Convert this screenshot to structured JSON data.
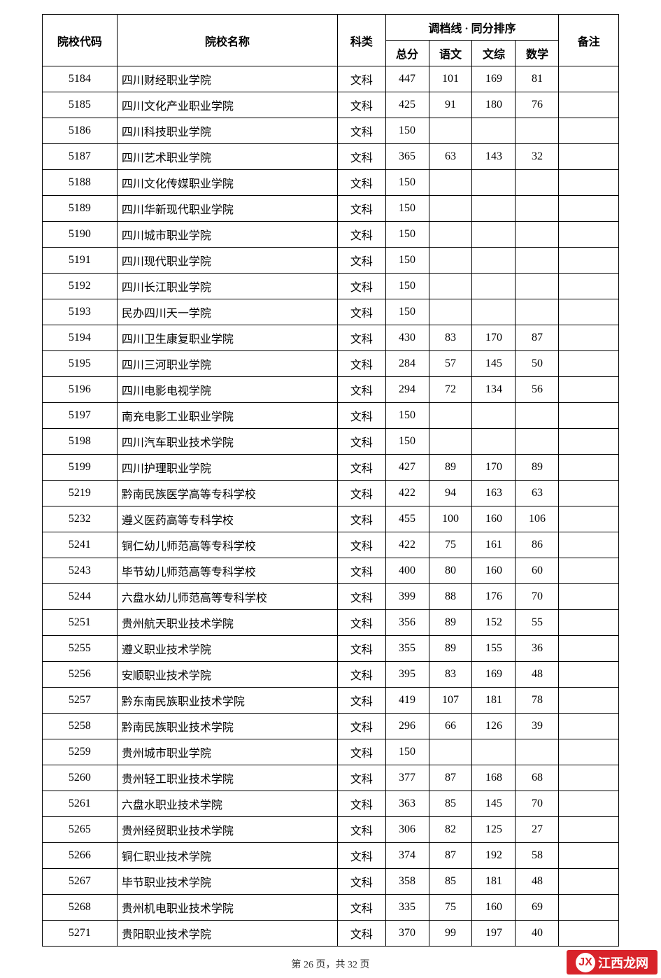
{
  "table": {
    "headers": {
      "code": "院校代码",
      "name": "院校名称",
      "type": "科类",
      "score_group": "调档线 · 同分排序",
      "total": "总分",
      "chinese": "语文",
      "comprehensive": "文综",
      "math": "数学",
      "remark": "备注"
    },
    "col_widths": {
      "code": 100,
      "name": 295,
      "type": 64,
      "score": 58,
      "sub": 58,
      "remark": 80
    },
    "rows": [
      {
        "code": "5184",
        "name": "四川财经职业学院",
        "type": "文科",
        "total": "447",
        "chinese": "101",
        "comp": "169",
        "math": "81",
        "remark": ""
      },
      {
        "code": "5185",
        "name": "四川文化产业职业学院",
        "type": "文科",
        "total": "425",
        "chinese": "91",
        "comp": "180",
        "math": "76",
        "remark": ""
      },
      {
        "code": "5186",
        "name": "四川科技职业学院",
        "type": "文科",
        "total": "150",
        "chinese": "",
        "comp": "",
        "math": "",
        "remark": ""
      },
      {
        "code": "5187",
        "name": "四川艺术职业学院",
        "type": "文科",
        "total": "365",
        "chinese": "63",
        "comp": "143",
        "math": "32",
        "remark": ""
      },
      {
        "code": "5188",
        "name": "四川文化传媒职业学院",
        "type": "文科",
        "total": "150",
        "chinese": "",
        "comp": "",
        "math": "",
        "remark": ""
      },
      {
        "code": "5189",
        "name": "四川华新现代职业学院",
        "type": "文科",
        "total": "150",
        "chinese": "",
        "comp": "",
        "math": "",
        "remark": ""
      },
      {
        "code": "5190",
        "name": "四川城市职业学院",
        "type": "文科",
        "total": "150",
        "chinese": "",
        "comp": "",
        "math": "",
        "remark": ""
      },
      {
        "code": "5191",
        "name": "四川现代职业学院",
        "type": "文科",
        "total": "150",
        "chinese": "",
        "comp": "",
        "math": "",
        "remark": ""
      },
      {
        "code": "5192",
        "name": "四川长江职业学院",
        "type": "文科",
        "total": "150",
        "chinese": "",
        "comp": "",
        "math": "",
        "remark": ""
      },
      {
        "code": "5193",
        "name": "民办四川天一学院",
        "type": "文科",
        "total": "150",
        "chinese": "",
        "comp": "",
        "math": "",
        "remark": ""
      },
      {
        "code": "5194",
        "name": "四川卫生康复职业学院",
        "type": "文科",
        "total": "430",
        "chinese": "83",
        "comp": "170",
        "math": "87",
        "remark": ""
      },
      {
        "code": "5195",
        "name": "四川三河职业学院",
        "type": "文科",
        "total": "284",
        "chinese": "57",
        "comp": "145",
        "math": "50",
        "remark": ""
      },
      {
        "code": "5196",
        "name": "四川电影电视学院",
        "type": "文科",
        "total": "294",
        "chinese": "72",
        "comp": "134",
        "math": "56",
        "remark": ""
      },
      {
        "code": "5197",
        "name": "南充电影工业职业学院",
        "type": "文科",
        "total": "150",
        "chinese": "",
        "comp": "",
        "math": "",
        "remark": ""
      },
      {
        "code": "5198",
        "name": "四川汽车职业技术学院",
        "type": "文科",
        "total": "150",
        "chinese": "",
        "comp": "",
        "math": "",
        "remark": ""
      },
      {
        "code": "5199",
        "name": "四川护理职业学院",
        "type": "文科",
        "total": "427",
        "chinese": "89",
        "comp": "170",
        "math": "89",
        "remark": ""
      },
      {
        "code": "5219",
        "name": "黔南民族医学高等专科学校",
        "type": "文科",
        "total": "422",
        "chinese": "94",
        "comp": "163",
        "math": "63",
        "remark": ""
      },
      {
        "code": "5232",
        "name": "遵义医药高等专科学校",
        "type": "文科",
        "total": "455",
        "chinese": "100",
        "comp": "160",
        "math": "106",
        "remark": ""
      },
      {
        "code": "5241",
        "name": "铜仁幼儿师范高等专科学校",
        "type": "文科",
        "total": "422",
        "chinese": "75",
        "comp": "161",
        "math": "86",
        "remark": ""
      },
      {
        "code": "5243",
        "name": "毕节幼儿师范高等专科学校",
        "type": "文科",
        "total": "400",
        "chinese": "80",
        "comp": "160",
        "math": "60",
        "remark": ""
      },
      {
        "code": "5244",
        "name": "六盘水幼儿师范高等专科学校",
        "type": "文科",
        "total": "399",
        "chinese": "88",
        "comp": "176",
        "math": "70",
        "remark": ""
      },
      {
        "code": "5251",
        "name": "贵州航天职业技术学院",
        "type": "文科",
        "total": "356",
        "chinese": "89",
        "comp": "152",
        "math": "55",
        "remark": ""
      },
      {
        "code": "5255",
        "name": "遵义职业技术学院",
        "type": "文科",
        "total": "355",
        "chinese": "89",
        "comp": "155",
        "math": "36",
        "remark": ""
      },
      {
        "code": "5256",
        "name": "安顺职业技术学院",
        "type": "文科",
        "total": "395",
        "chinese": "83",
        "comp": "169",
        "math": "48",
        "remark": ""
      },
      {
        "code": "5257",
        "name": "黔东南民族职业技术学院",
        "type": "文科",
        "total": "419",
        "chinese": "107",
        "comp": "181",
        "math": "78",
        "remark": ""
      },
      {
        "code": "5258",
        "name": "黔南民族职业技术学院",
        "type": "文科",
        "total": "296",
        "chinese": "66",
        "comp": "126",
        "math": "39",
        "remark": ""
      },
      {
        "code": "5259",
        "name": "贵州城市职业学院",
        "type": "文科",
        "total": "150",
        "chinese": "",
        "comp": "",
        "math": "",
        "remark": ""
      },
      {
        "code": "5260",
        "name": "贵州轻工职业技术学院",
        "type": "文科",
        "total": "377",
        "chinese": "87",
        "comp": "168",
        "math": "68",
        "remark": ""
      },
      {
        "code": "5261",
        "name": "六盘水职业技术学院",
        "type": "文科",
        "total": "363",
        "chinese": "85",
        "comp": "145",
        "math": "70",
        "remark": ""
      },
      {
        "code": "5265",
        "name": "贵州经贸职业技术学院",
        "type": "文科",
        "total": "306",
        "chinese": "82",
        "comp": "125",
        "math": "27",
        "remark": ""
      },
      {
        "code": "5266",
        "name": "铜仁职业技术学院",
        "type": "文科",
        "total": "374",
        "chinese": "87",
        "comp": "192",
        "math": "58",
        "remark": ""
      },
      {
        "code": "5267",
        "name": "毕节职业技术学院",
        "type": "文科",
        "total": "358",
        "chinese": "85",
        "comp": "181",
        "math": "48",
        "remark": ""
      },
      {
        "code": "5268",
        "name": "贵州机电职业技术学院",
        "type": "文科",
        "total": "335",
        "chinese": "75",
        "comp": "160",
        "math": "69",
        "remark": ""
      },
      {
        "code": "5271",
        "name": "贵阳职业技术学院",
        "type": "文科",
        "total": "370",
        "chinese": "99",
        "comp": "197",
        "math": "40",
        "remark": ""
      }
    ]
  },
  "footer": {
    "prefix": "第 ",
    "current_page": "26",
    "mid": " 页，共 ",
    "total_pages": "32",
    "suffix": " 页"
  },
  "watermark": {
    "text": "江西龙网",
    "dot": "JX",
    "bg_color": "#d8232a",
    "text_color": "#ffffff"
  },
  "styling": {
    "border_color": "#000000",
    "font_family": "SimSun",
    "font_size_body": 16,
    "font_size_footer": 14,
    "background_color": "#ffffff"
  }
}
